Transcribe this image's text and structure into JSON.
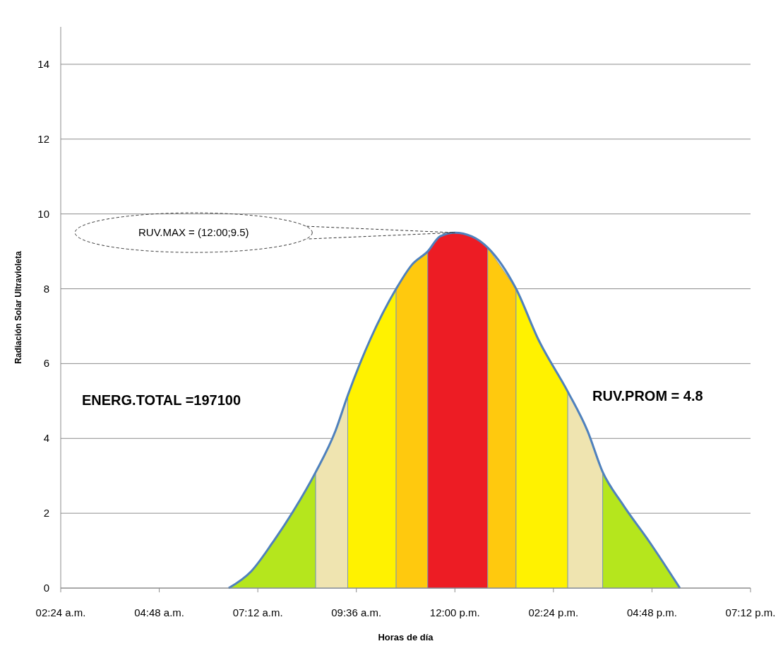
{
  "chart_data": {
    "type": "area",
    "xlabel": "Horas de día",
    "ylabel": "Radiación Solar Ultravioleta",
    "xlim": [
      2.4,
      19.2
    ],
    "ylim": [
      0,
      15
    ],
    "xticks": [
      {
        "value": 2.4,
        "label": "02:24 a.m."
      },
      {
        "value": 4.8,
        "label": "04:48 a.m."
      },
      {
        "value": 7.2,
        "label": "07:12 a.m."
      },
      {
        "value": 9.6,
        "label": "09:36 a.m."
      },
      {
        "value": 12,
        "label": "12:00 p.m."
      },
      {
        "value": 14.4,
        "label": "02:24 p.m."
      },
      {
        "value": 16.8,
        "label": "04:48 p.m."
      },
      {
        "value": 19.2,
        "label": "07:12 p.m."
      }
    ],
    "yticks": [
      0,
      2,
      4,
      6,
      8,
      10,
      12,
      14
    ],
    "grid": "y",
    "series": [
      {
        "color": "#b5e61d",
        "x": [
          6.49,
          7.04,
          7.55,
          8.06,
          8.61
        ],
        "values": [
          0,
          0.45,
          1.2,
          2.05,
          3.1
        ]
      },
      {
        "color": "#efe4b0",
        "x": [
          8.61,
          9.09,
          9.39
        ],
        "values": [
          3.1,
          4.2,
          5.15
        ]
      },
      {
        "color": "#fff200",
        "x": [
          9.39,
          9.94,
          10.57
        ],
        "values": [
          5.15,
          6.65,
          8.0
        ]
      },
      {
        "color": "#ffc90e",
        "x": [
          10.57,
          10.96,
          11.34
        ],
        "values": [
          8.0,
          8.65,
          9.0
        ]
      },
      {
        "color": "#ed1c24",
        "x": [
          11.34,
          11.64,
          12.0,
          12.41,
          12.8
        ],
        "values": [
          9.0,
          9.4,
          9.5,
          9.4,
          9.1
        ]
      },
      {
        "color": "#ffc90e",
        "x": [
          12.8,
          13.49
        ],
        "values": [
          9.1,
          8.0
        ]
      },
      {
        "color": "#fff200",
        "x": [
          13.49,
          14.03,
          14.75
        ],
        "values": [
          8.0,
          6.65,
          5.25
        ]
      },
      {
        "color": "#efe4b0",
        "x": [
          14.75,
          15.23,
          15.6
        ],
        "values": [
          5.25,
          4.2,
          3.1
        ]
      },
      {
        "color": "#b5e61d",
        "x": [
          15.6,
          16.08,
          16.76,
          17.48
        ],
        "values": [
          3.1,
          2.25,
          1.2,
          0
        ]
      },
      {
        "type": "line",
        "color": "#4f81bd",
        "x": [
          6.49,
          7.04,
          7.55,
          8.06,
          8.61,
          9.09,
          9.39,
          9.94,
          10.57,
          10.96,
          11.34,
          11.64,
          12.0,
          12.41,
          12.8,
          13.49,
          14.03,
          14.75,
          15.23,
          15.6,
          16.08,
          16.76,
          17.48
        ],
        "values": [
          0,
          0.45,
          1.2,
          2.05,
          3.1,
          4.2,
          5.15,
          6.65,
          8.0,
          8.65,
          9.0,
          9.4,
          9.5,
          9.4,
          9.1,
          8.0,
          6.65,
          5.25,
          4.2,
          3.1,
          2.25,
          1.2,
          0
        ]
      }
    ],
    "annotations": [
      "RUV.MAX = (12:00;9.5)",
      "ENERG.TOTAL =197100",
      "RUV.PROM = 4.8"
    ]
  }
}
